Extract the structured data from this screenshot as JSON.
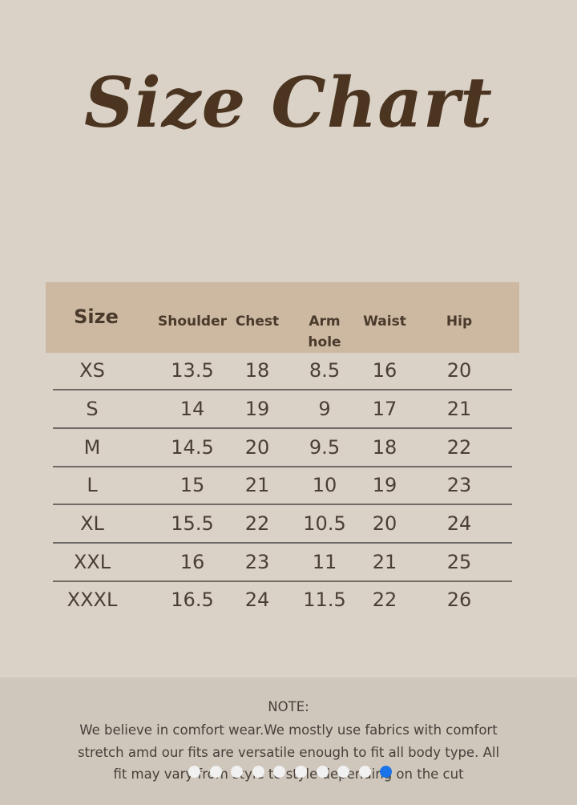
{
  "title": "Size Chart",
  "table": {
    "headers": [
      "Size",
      "Shoulder",
      "Chest",
      "Arm hole",
      "Waist",
      "Hip"
    ],
    "header_colors": {
      "band": "#cdb9a1"
    },
    "rows": [
      [
        "XS",
        "13.5",
        "18",
        "8.5",
        "16",
        "20"
      ],
      [
        "S",
        "14",
        "19",
        "9",
        "17",
        "21"
      ],
      [
        "M",
        "14.5",
        "20",
        "9.5",
        "18",
        "22"
      ],
      [
        "L",
        "15",
        "21",
        "10",
        "19",
        "23"
      ],
      [
        "XL",
        "15.5",
        "22",
        "10.5",
        "20",
        "24"
      ],
      [
        "XXL",
        "16",
        "23",
        "11",
        "21",
        "25"
      ],
      [
        "XXXL",
        "16.5",
        "24",
        "11.5",
        "22",
        "26"
      ]
    ]
  },
  "note": {
    "heading": "NOTE:",
    "lines": [
      "We believe in comfort wear.We mostly use fabrics with comfort",
      "stretch amd our fits are versatile enough to fit all body type. All",
      "fit may vary from style to style depending on the cut"
    ]
  },
  "carousel": {
    "count": 10,
    "active_index": 9,
    "active_color": "#1a73e8"
  }
}
